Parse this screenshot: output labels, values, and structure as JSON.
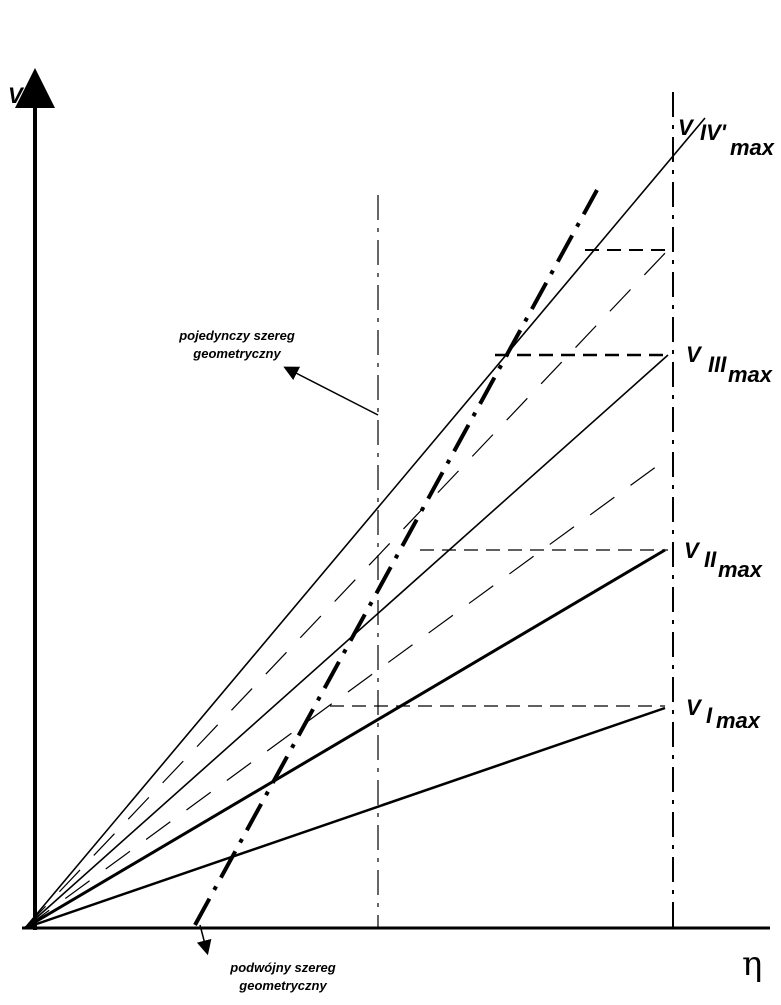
{
  "axes": {
    "y_label": "V",
    "x_label": "η"
  },
  "speed_labels": [
    {
      "symbol": "V",
      "index": "IV'",
      "subscript": "max"
    },
    {
      "symbol": "V",
      "index": "III",
      "subscript": "max"
    },
    {
      "symbol": "V",
      "index": "II",
      "subscript": "max"
    },
    {
      "symbol": "V",
      "index": "I",
      "subscript": "max"
    }
  ],
  "annotations": [
    {
      "lines": [
        "pojedynczy szereg",
        "geometryczny"
      ]
    },
    {
      "lines": [
        "podwójny szereg",
        "geometryczny"
      ]
    }
  ]
}
